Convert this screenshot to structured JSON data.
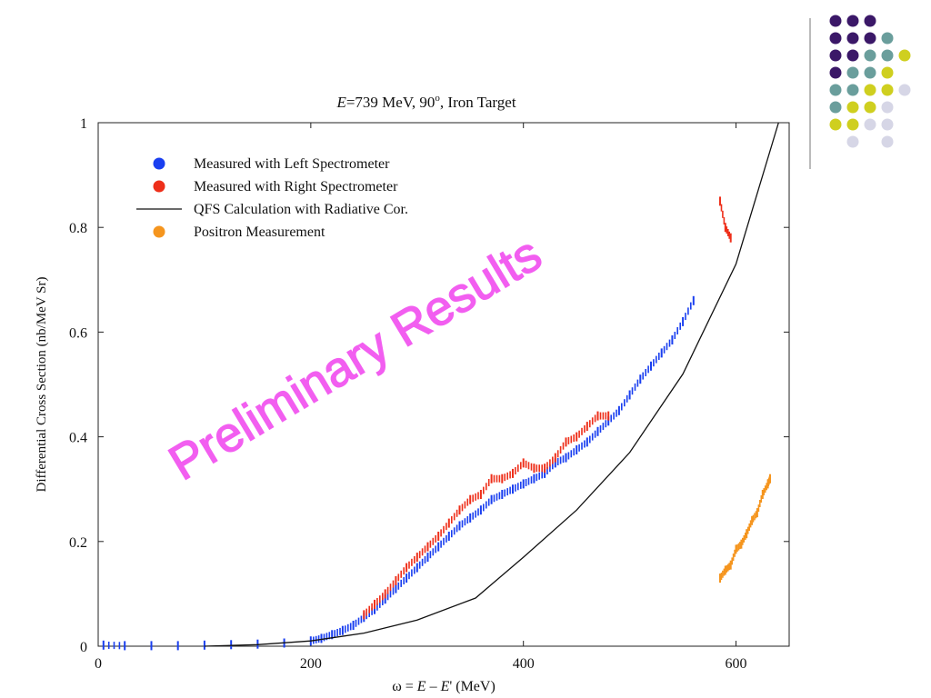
{
  "chart_data": {
    "type": "scatter",
    "title": "E=739 MeV, 90°, Iron Target",
    "title_parts": {
      "symbol": "E",
      "rest": "=739 MeV, 90",
      "degree": "o",
      "tail": ", Iron Target"
    },
    "xlabel": "ω = E – E′ (MeV)",
    "xlabel_parts": {
      "omega": "ω = ",
      "e1": "E",
      "minus": " – ",
      "e2": "E",
      "prime": "'",
      "unit": " (MeV)"
    },
    "ylabel": "Differential Cross Section (nb/MeV Sr)",
    "xlim": [
      0,
      650
    ],
    "ylim": [
      0,
      1
    ],
    "xticks": [
      0,
      200,
      400,
      600
    ],
    "yticks": [
      0,
      0.2,
      0.4,
      0.6,
      0.8,
      1
    ],
    "ytick_labels": [
      "0",
      "0.2",
      "0.4",
      "0.6",
      "0.8",
      "1"
    ],
    "grid": false,
    "legend_placement": "top-left",
    "watermark": "Preliminary Results",
    "series": [
      {
        "name": "Measured with Left Spectrometer",
        "kind": "points",
        "color": "#1a3ff0",
        "points": [
          [
            5,
            0.002
          ],
          [
            25,
            0.001
          ],
          [
            50,
            0.001
          ],
          [
            75,
            0.001
          ],
          [
            100,
            0.002
          ],
          [
            125,
            0.003
          ],
          [
            150,
            0.004
          ],
          [
            175,
            0.006
          ],
          [
            200,
            0.01
          ],
          [
            210,
            0.015
          ],
          [
            220,
            0.022
          ],
          [
            230,
            0.03
          ],
          [
            240,
            0.04
          ],
          [
            250,
            0.055
          ],
          [
            260,
            0.07
          ],
          [
            270,
            0.09
          ],
          [
            280,
            0.11
          ],
          [
            290,
            0.13
          ],
          [
            300,
            0.15
          ],
          [
            310,
            0.17
          ],
          [
            320,
            0.19
          ],
          [
            330,
            0.21
          ],
          [
            340,
            0.23
          ],
          [
            350,
            0.245
          ],
          [
            360,
            0.26
          ],
          [
            370,
            0.28
          ],
          [
            380,
            0.29
          ],
          [
            390,
            0.3
          ],
          [
            400,
            0.31
          ],
          [
            410,
            0.32
          ],
          [
            420,
            0.33
          ],
          [
            430,
            0.35
          ],
          [
            440,
            0.36
          ],
          [
            450,
            0.375
          ],
          [
            460,
            0.39
          ],
          [
            470,
            0.41
          ],
          [
            480,
            0.43
          ],
          [
            490,
            0.45
          ],
          [
            500,
            0.48
          ],
          [
            510,
            0.51
          ],
          [
            520,
            0.535
          ],
          [
            530,
            0.56
          ],
          [
            540,
            0.585
          ],
          [
            550,
            0.62
          ],
          [
            560,
            0.66
          ]
        ]
      },
      {
        "name": "Measured with Right Spectrometer",
        "kind": "points",
        "color": "#ee2f1a",
        "points": [
          [
            250,
            0.06
          ],
          [
            260,
            0.08
          ],
          [
            270,
            0.1
          ],
          [
            280,
            0.125
          ],
          [
            290,
            0.15
          ],
          [
            300,
            0.17
          ],
          [
            310,
            0.19
          ],
          [
            320,
            0.21
          ],
          [
            330,
            0.235
          ],
          [
            340,
            0.26
          ],
          [
            350,
            0.28
          ],
          [
            360,
            0.29
          ],
          [
            370,
            0.32
          ],
          [
            380,
            0.32
          ],
          [
            390,
            0.33
          ],
          [
            400,
            0.35
          ],
          [
            410,
            0.34
          ],
          [
            420,
            0.34
          ],
          [
            430,
            0.36
          ],
          [
            440,
            0.39
          ],
          [
            450,
            0.4
          ],
          [
            460,
            0.42
          ],
          [
            470,
            0.44
          ],
          [
            480,
            0.44
          ],
          [
            585,
            0.85
          ],
          [
            590,
            0.8
          ],
          [
            595,
            0.78
          ]
        ]
      },
      {
        "name": "QFS Calculation with Radiative Cor.",
        "kind": "line",
        "color": "#111111",
        "points": [
          [
            100,
            0.0
          ],
          [
            150,
            0.003
          ],
          [
            200,
            0.01
          ],
          [
            250,
            0.025
          ],
          [
            300,
            0.05
          ],
          [
            355,
            0.092
          ],
          [
            400,
            0.17
          ],
          [
            450,
            0.26
          ],
          [
            500,
            0.37
          ],
          [
            550,
            0.52
          ],
          [
            600,
            0.73
          ],
          [
            640,
            1.0
          ]
        ]
      },
      {
        "name": "Positron Measurement",
        "kind": "points",
        "color": "#f5951e",
        "points": [
          [
            585,
            0.13
          ],
          [
            590,
            0.145
          ],
          [
            595,
            0.155
          ],
          [
            600,
            0.185
          ],
          [
            605,
            0.195
          ],
          [
            610,
            0.215
          ],
          [
            615,
            0.24
          ],
          [
            620,
            0.255
          ],
          [
            625,
            0.29
          ],
          [
            630,
            0.31
          ],
          [
            632,
            0.32
          ]
        ]
      }
    ]
  },
  "decoration": {
    "dots": [
      {
        "row": 0,
        "col": 0,
        "color": "#3b1868"
      },
      {
        "row": 0,
        "col": 1,
        "color": "#3b1868"
      },
      {
        "row": 0,
        "col": 2,
        "color": "#3b1868"
      },
      {
        "row": 1,
        "col": 0,
        "color": "#3b1868"
      },
      {
        "row": 1,
        "col": 1,
        "color": "#3b1868"
      },
      {
        "row": 1,
        "col": 2,
        "color": "#3b1868"
      },
      {
        "row": 1,
        "col": 3,
        "color": "#6a9e9c"
      },
      {
        "row": 2,
        "col": 0,
        "color": "#3b1868"
      },
      {
        "row": 2,
        "col": 1,
        "color": "#3b1868"
      },
      {
        "row": 2,
        "col": 2,
        "color": "#6a9e9c"
      },
      {
        "row": 2,
        "col": 3,
        "color": "#6a9e9c"
      },
      {
        "row": 2,
        "col": 4,
        "color": "#cfcf1f"
      },
      {
        "row": 3,
        "col": 0,
        "color": "#3b1868"
      },
      {
        "row": 3,
        "col": 1,
        "color": "#6a9e9c"
      },
      {
        "row": 3,
        "col": 2,
        "color": "#6a9e9c"
      },
      {
        "row": 3,
        "col": 3,
        "color": "#cfcf1f"
      },
      {
        "row": 4,
        "col": 0,
        "color": "#6a9e9c"
      },
      {
        "row": 4,
        "col": 1,
        "color": "#6a9e9c"
      },
      {
        "row": 4,
        "col": 2,
        "color": "#cfcf1f"
      },
      {
        "row": 4,
        "col": 3,
        "color": "#cfcf1f"
      },
      {
        "row": 4,
        "col": 4,
        "color": "#d6d6e6"
      },
      {
        "row": 5,
        "col": 0,
        "color": "#6a9e9c"
      },
      {
        "row": 5,
        "col": 1,
        "color": "#cfcf1f"
      },
      {
        "row": 5,
        "col": 2,
        "color": "#cfcf1f"
      },
      {
        "row": 5,
        "col": 3,
        "color": "#d6d6e6"
      },
      {
        "row": 6,
        "col": 0,
        "color": "#cfcf1f"
      },
      {
        "row": 6,
        "col": 1,
        "color": "#cfcf1f"
      },
      {
        "row": 6,
        "col": 2,
        "color": "#d6d6e6"
      },
      {
        "row": 6,
        "col": 3,
        "color": "#d6d6e6"
      },
      {
        "row": 7,
        "col": 1,
        "color": "#d6d6e6"
      },
      {
        "row": 7,
        "col": 3,
        "color": "#d6d6e6"
      }
    ]
  }
}
